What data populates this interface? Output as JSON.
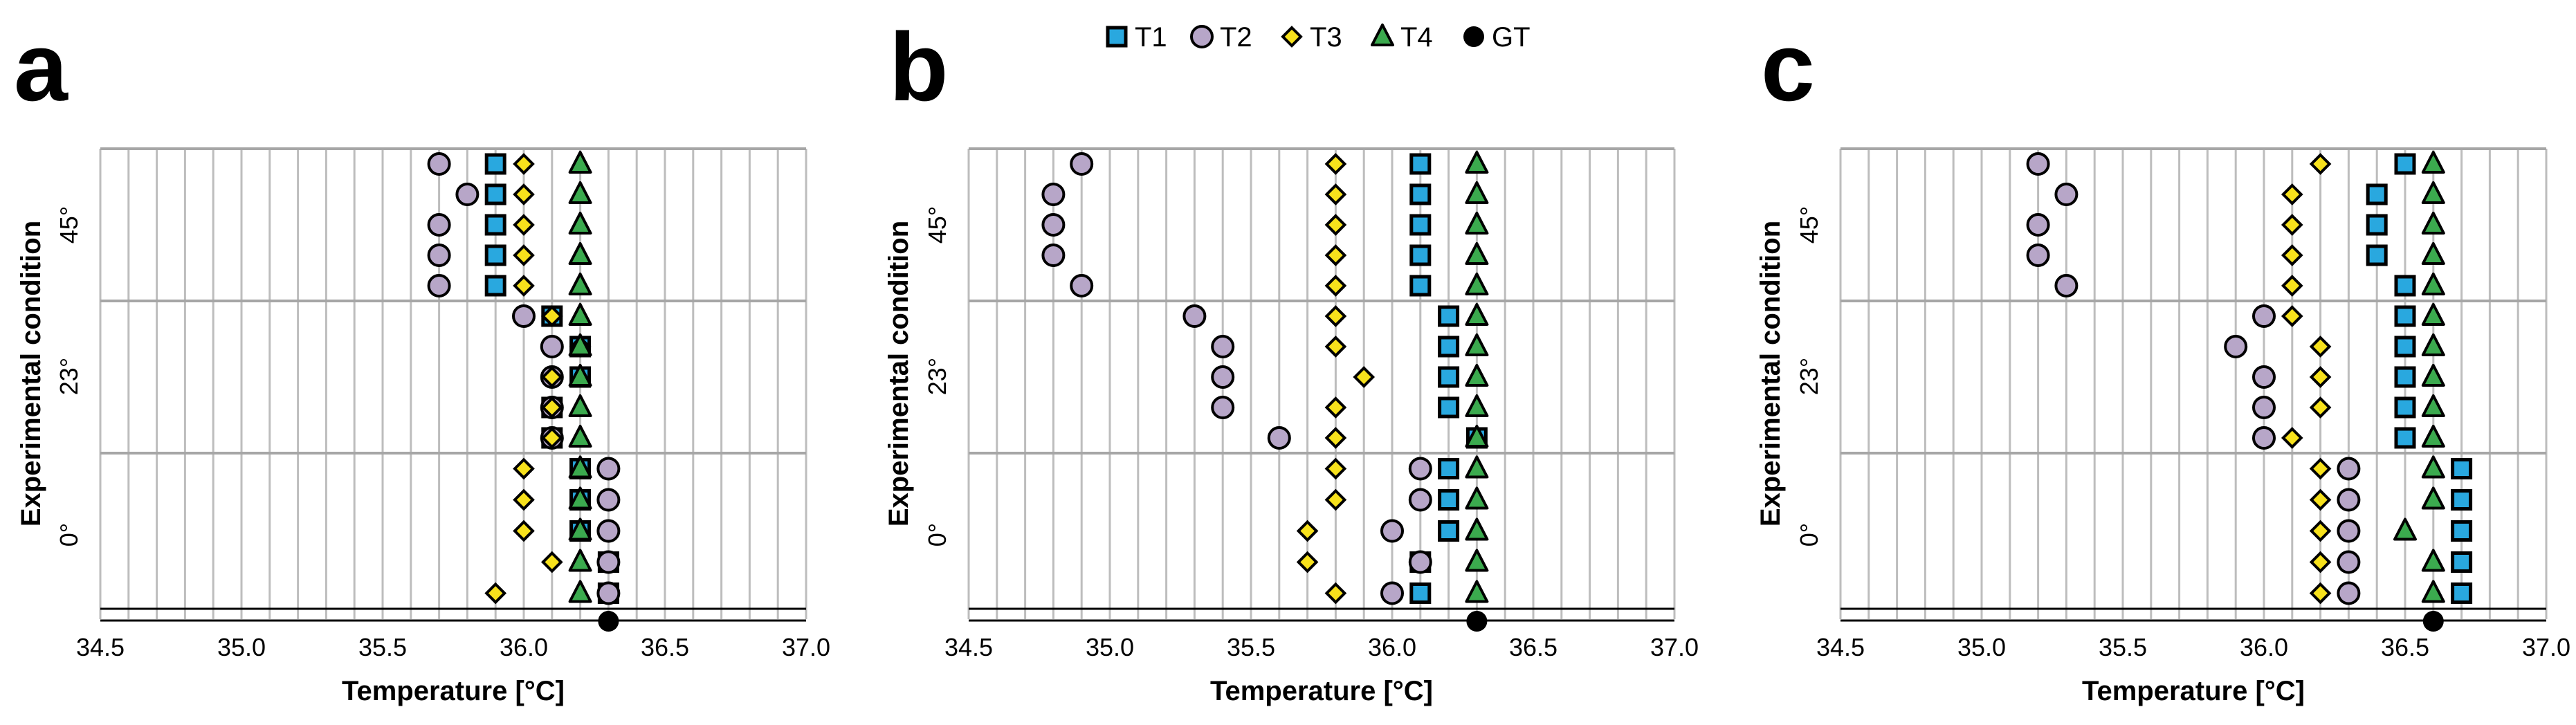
{
  "legend": [
    {
      "name": "T1",
      "marker": "square",
      "color": "#29A8DF"
    },
    {
      "name": "T2",
      "marker": "circle",
      "color": "#B7A6C8"
    },
    {
      "name": "T3",
      "marker": "diamond",
      "color": "#F7E11C"
    },
    {
      "name": "T4",
      "marker": "triangle",
      "color": "#3BAA4E"
    },
    {
      "name": "GT",
      "marker": "circle",
      "color": "#000000"
    }
  ],
  "colors": {
    "grid": "#bdbdbd",
    "group_line": "#a6a6a6",
    "marker_stroke": "#000000"
  },
  "chart_data": [
    {
      "type": "scatter",
      "panel": "a",
      "xlabel": "Temperature [°C]",
      "ylabel": "Experimental condition",
      "xlim": [
        34.5,
        37.0
      ],
      "x_ticks": [
        "34.5",
        "35.0",
        "35.5",
        "36.0",
        "36.5",
        "37.0"
      ],
      "grid_step": 0.1,
      "groups": [
        "0°",
        "23°",
        "45°"
      ],
      "gt": 36.3,
      "series": [
        {
          "name": "T1",
          "groups": [
            [
              36.3,
              36.3,
              36.2,
              36.2,
              36.2
            ],
            [
              36.1,
              36.1,
              36.2,
              36.2,
              36.1
            ],
            [
              35.9,
              35.9,
              35.9,
              35.9,
              35.9
            ]
          ]
        },
        {
          "name": "T2",
          "groups": [
            [
              36.3,
              36.3,
              36.3,
              36.3,
              36.3
            ],
            [
              36.1,
              36.1,
              36.1,
              36.1,
              36.0
            ],
            [
              35.7,
              35.7,
              35.7,
              35.8,
              35.7
            ]
          ]
        },
        {
          "name": "T3",
          "groups": [
            [
              35.9,
              36.1,
              36.0,
              36.0,
              36.0
            ],
            [
              36.1,
              36.1,
              36.1,
              36.2,
              36.1
            ],
            [
              36.0,
              36.0,
              36.0,
              36.0,
              36.0
            ]
          ]
        },
        {
          "name": "T4",
          "groups": [
            [
              36.2,
              36.2,
              36.2,
              36.2,
              36.2
            ],
            [
              36.2,
              36.2,
              36.2,
              36.2,
              36.2
            ],
            [
              36.2,
              36.2,
              36.2,
              36.2,
              36.2
            ]
          ]
        }
      ]
    },
    {
      "type": "scatter",
      "panel": "b",
      "xlabel": "Temperature [°C]",
      "ylabel": "Experimental condition",
      "xlim": [
        34.5,
        37.0
      ],
      "x_ticks": [
        "34.5",
        "35.0",
        "35.5",
        "36.0",
        "36.5",
        "37.0"
      ],
      "grid_step": 0.1,
      "groups": [
        "0°",
        "23°",
        "45°"
      ],
      "gt": 36.3,
      "series": [
        {
          "name": "T1",
          "groups": [
            [
              36.1,
              36.1,
              36.2,
              36.2,
              36.2
            ],
            [
              36.3,
              36.2,
              36.2,
              36.2,
              36.2
            ],
            [
              36.1,
              36.1,
              36.1,
              36.1,
              36.1
            ]
          ]
        },
        {
          "name": "T2",
          "groups": [
            [
              36.0,
              36.1,
              36.0,
              36.1,
              36.1
            ],
            [
              35.6,
              35.4,
              35.4,
              35.4,
              35.3
            ],
            [
              34.9,
              34.8,
              34.8,
              34.8,
              34.9
            ]
          ]
        },
        {
          "name": "T3",
          "groups": [
            [
              35.8,
              35.7,
              35.7,
              35.8,
              35.8
            ],
            [
              35.8,
              35.8,
              35.9,
              35.8,
              35.8
            ],
            [
              35.8,
              35.8,
              35.8,
              35.8,
              35.8
            ]
          ]
        },
        {
          "name": "T4",
          "groups": [
            [
              36.3,
              36.3,
              36.3,
              36.3,
              36.3
            ],
            [
              36.3,
              36.3,
              36.3,
              36.3,
              36.3
            ],
            [
              36.3,
              36.3,
              36.3,
              36.3,
              36.3
            ]
          ]
        }
      ]
    },
    {
      "type": "scatter",
      "panel": "c",
      "xlabel": "Temperature [°C]",
      "ylabel": "Experimental condition",
      "xlim": [
        34.5,
        37.0
      ],
      "x_ticks": [
        "34.5",
        "35.0",
        "35.5",
        "36.0",
        "36.5",
        "37.0"
      ],
      "grid_step": 0.1,
      "groups": [
        "0°",
        "23°",
        "45°"
      ],
      "gt": 36.6,
      "series": [
        {
          "name": "T1",
          "groups": [
            [
              36.7,
              36.7,
              36.7,
              36.7,
              36.7
            ],
            [
              36.5,
              36.5,
              36.5,
              36.5,
              36.5
            ],
            [
              36.5,
              36.4,
              36.4,
              36.4,
              36.5
            ]
          ]
        },
        {
          "name": "T2",
          "groups": [
            [
              36.3,
              36.3,
              36.3,
              36.3,
              36.3
            ],
            [
              36.0,
              36.0,
              36.0,
              35.9,
              36.0
            ],
            [
              35.3,
              35.2,
              35.2,
              35.3,
              35.2
            ]
          ]
        },
        {
          "name": "T3",
          "groups": [
            [
              36.2,
              36.2,
              36.2,
              36.2,
              36.2
            ],
            [
              36.1,
              36.2,
              36.2,
              36.2,
              36.1
            ],
            [
              36.1,
              36.1,
              36.1,
              36.1,
              36.2
            ]
          ]
        },
        {
          "name": "T4",
          "groups": [
            [
              36.6,
              36.6,
              36.5,
              36.6,
              36.6
            ],
            [
              36.6,
              36.6,
              36.6,
              36.6,
              36.6
            ],
            [
              36.6,
              36.6,
              36.6,
              36.6,
              36.6
            ]
          ]
        }
      ]
    }
  ]
}
